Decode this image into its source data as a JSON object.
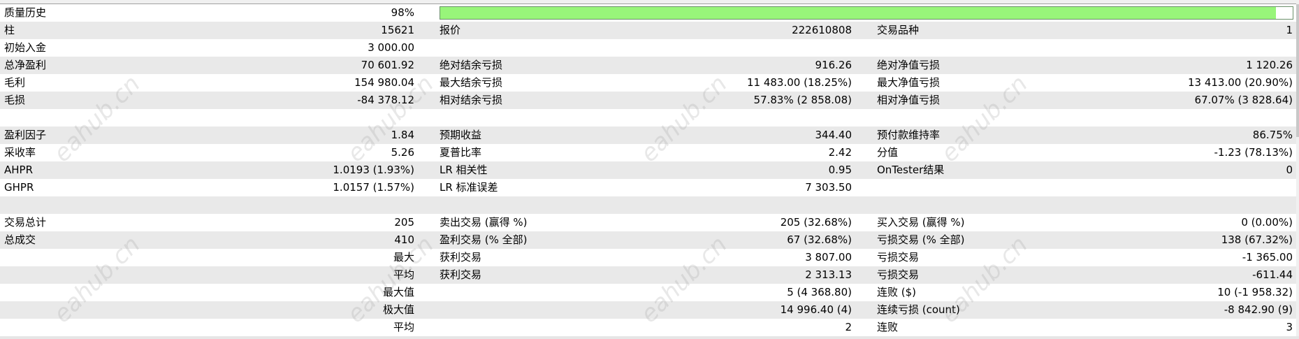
{
  "watermark": "eahub.cn",
  "quality": {
    "label": "质量历史",
    "value": "98%",
    "fraction": 0.98,
    "bar_color": "#98f57a"
  },
  "rows": [
    {
      "c1": [
        "柱",
        "15621"
      ],
      "c2": [
        "报价",
        "222610808"
      ],
      "c3": [
        "交易品种",
        "1"
      ]
    },
    {
      "c1": [
        "初始入金",
        "3 000.00"
      ],
      "c2": [
        "",
        ""
      ],
      "c3": [
        "",
        ""
      ]
    },
    {
      "c1": [
        "总净盈利",
        "70 601.92"
      ],
      "c2": [
        "绝对结余亏损",
        "916.26"
      ],
      "c3": [
        "绝对净值亏损",
        "1 120.26"
      ]
    },
    {
      "c1": [
        "毛利",
        "154 980.04"
      ],
      "c2": [
        "最大结余亏损",
        "11 483.00 (18.25%)"
      ],
      "c3": [
        "最大净值亏损",
        "13 413.00 (20.90%)"
      ]
    },
    {
      "c1": [
        "毛损",
        "-84 378.12"
      ],
      "c2": [
        "相对结余亏损",
        "57.83% (2 858.08)"
      ],
      "c3": [
        "相对净值亏损",
        "67.07% (3 828.64)"
      ]
    },
    {
      "c1": [
        "",
        ""
      ],
      "c2": [
        "",
        ""
      ],
      "c3": [
        "",
        ""
      ]
    },
    {
      "c1": [
        "盈利因子",
        "1.84"
      ],
      "c2": [
        "预期收益",
        "344.40"
      ],
      "c3": [
        "预付款维持率",
        "86.75%"
      ]
    },
    {
      "c1": [
        "采收率",
        "5.26"
      ],
      "c2": [
        "夏普比率",
        "2.42"
      ],
      "c3": [
        "分值",
        "-1.23 (78.13%)"
      ]
    },
    {
      "c1": [
        "AHPR",
        "1.0193 (1.93%)"
      ],
      "c2": [
        "LR 相关性",
        "0.95"
      ],
      "c3": [
        "OnTester结果",
        "0"
      ]
    },
    {
      "c1": [
        "GHPR",
        "1.0157 (1.57%)"
      ],
      "c2": [
        "LR 标准误差",
        "7 303.50"
      ],
      "c3": [
        "",
        ""
      ]
    },
    {
      "c1": [
        "",
        ""
      ],
      "c2": [
        "",
        ""
      ],
      "c3": [
        "",
        ""
      ]
    },
    {
      "c1": [
        "交易总计",
        "205"
      ],
      "c2": [
        "卖出交易 (赢得 %)",
        "205 (32.68%)"
      ],
      "c3": [
        "买入交易 (赢得 %)",
        "0 (0.00%)"
      ]
    },
    {
      "c1": [
        "总成交",
        "410"
      ],
      "c2": [
        "盈利交易 (% 全部)",
        "67 (32.68%)"
      ],
      "c3": [
        "亏损交易 (% 全部)",
        "138 (67.32%)"
      ]
    },
    {
      "c1": [
        "",
        "最大"
      ],
      "c2": [
        "获利交易",
        "3 807.00"
      ],
      "c3": [
        "亏损交易",
        "-1 365.00"
      ]
    },
    {
      "c1": [
        "",
        "平均"
      ],
      "c2": [
        "获利交易",
        "2 313.13"
      ],
      "c3": [
        "亏损交易",
        "-611.44"
      ]
    },
    {
      "c1": [
        "",
        "最大值"
      ],
      "c2": [
        "",
        "5 (4 368.80)"
      ],
      "c3": [
        "连败 ($)",
        "10 (-1 958.32)"
      ]
    },
    {
      "c1": [
        "",
        "极大值"
      ],
      "c2": [
        "",
        "14 996.40 (4)"
      ],
      "c3": [
        "连续亏损 (count)",
        "-8 842.90 (9)"
      ]
    },
    {
      "c1": [
        "",
        "平均"
      ],
      "c2": [
        "",
        "2"
      ],
      "c3": [
        "连败",
        "3"
      ]
    }
  ]
}
